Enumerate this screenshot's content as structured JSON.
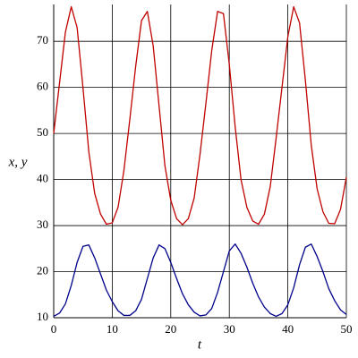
{
  "chart_data": {
    "type": "line",
    "x_label": "t",
    "y_label": "x, y",
    "x": [
      0,
      1,
      2,
      3,
      4,
      5,
      6,
      7,
      8,
      9,
      10,
      11,
      12,
      13,
      14,
      15,
      16,
      17,
      18,
      19,
      20,
      21,
      22,
      23,
      24,
      25,
      26,
      27,
      28,
      29,
      30,
      31,
      32,
      33,
      34,
      35,
      36,
      37,
      38,
      39,
      40,
      41,
      42,
      43,
      44,
      45,
      46,
      47,
      48,
      49,
      50
    ],
    "series": [
      {
        "color": "#c00000",
        "values": [
          50,
          61,
          72,
          77.5,
          73,
          60,
          46,
          37,
          32.5,
          30.3,
          30.6,
          34,
          42,
          53,
          64.5,
          74.5,
          76.5,
          69,
          56,
          43,
          35.5,
          31.5,
          30.2,
          31.5,
          36,
          45.5,
          56.5,
          68,
          76.5,
          76,
          65,
          51.5,
          40,
          34,
          31,
          30.3,
          32.5,
          38.5,
          49,
          60,
          71,
          77.5,
          74,
          61.5,
          47.5,
          38,
          33,
          30.5,
          30.4,
          33.5,
          40.5
        ]
      },
      {
        "color": "#00008b",
        "values": [
          10.3,
          11,
          13,
          17,
          22,
          25.5,
          25.8,
          23,
          19.5,
          16,
          13.5,
          11.5,
          10.5,
          10.5,
          11.5,
          14,
          18.5,
          23,
          25.8,
          25,
          22,
          18.5,
          15.2,
          12.8,
          11.2,
          10.4,
          10.6,
          12,
          15.5,
          20,
          24.5,
          26,
          24,
          21,
          17.5,
          14.5,
          12.3,
          10.9,
          10.3,
          10.9,
          12.8,
          16.5,
          21.5,
          25.3,
          26,
          23.3,
          20,
          16.3,
          13.7,
          11.7,
          10.7
        ]
      }
    ],
    "xlim": [
      0,
      50
    ],
    "xticks": [
      0,
      10,
      20,
      30,
      40,
      50
    ],
    "ylim": [
      10,
      78
    ],
    "yticks": [
      10,
      20,
      30,
      40,
      50,
      60,
      70
    ],
    "grid": true
  }
}
